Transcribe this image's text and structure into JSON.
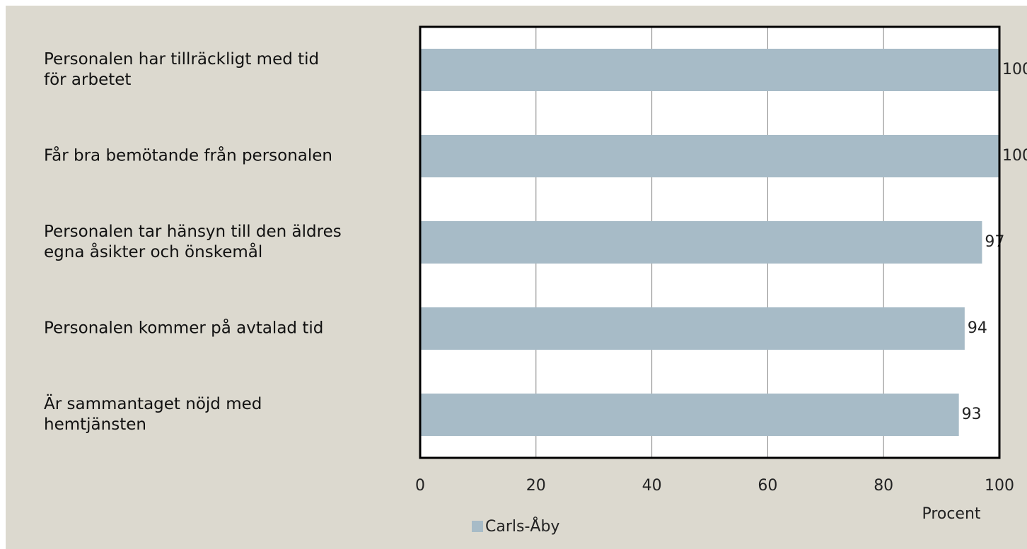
{
  "chart_data": {
    "type": "bar",
    "orientation": "horizontal",
    "categories": [
      "Personalen har tillräckligt med tid\nför arbetet",
      "Får bra bemötande från personalen",
      "Personalen tar hänsyn till den äldres\negna åsikter och önskemål",
      "Personalen kommer på avtalad tid",
      "Är sammantaget nöjd med\nhemtjänsten"
    ],
    "series": [
      {
        "name": "Carls-Åby",
        "color": "#a7bbc7",
        "values": [
          100,
          100,
          97,
          94,
          93
        ]
      }
    ],
    "xlim": [
      0,
      100
    ],
    "xticks": [
      0,
      20,
      40,
      60,
      80,
      100
    ],
    "grid": true,
    "xlabel": "Procent",
    "legend": "bottom"
  }
}
